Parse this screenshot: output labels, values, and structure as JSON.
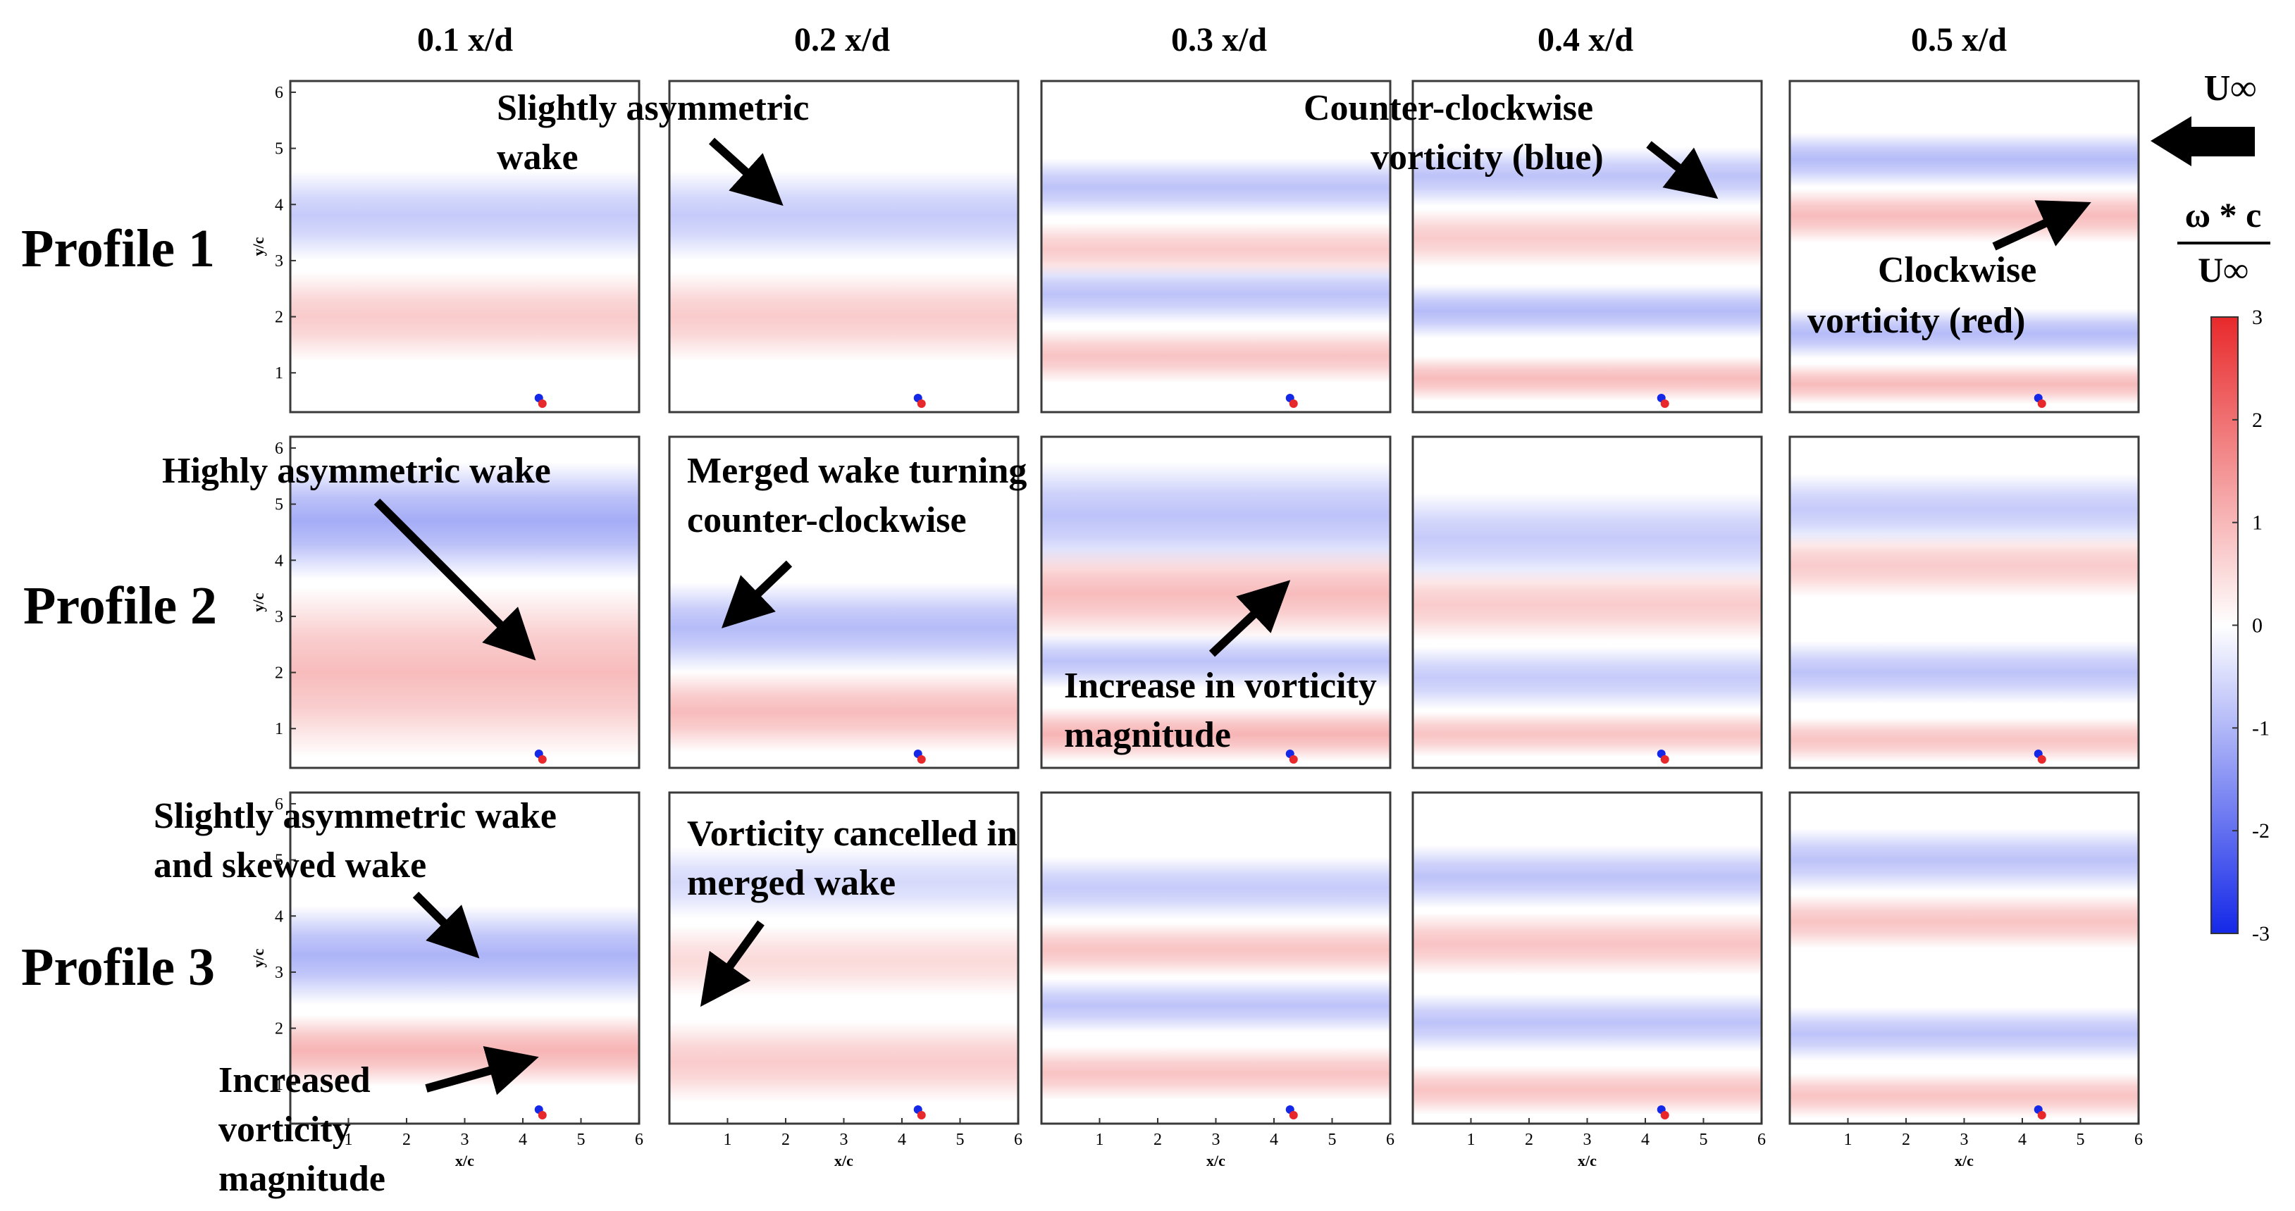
{
  "chart_data": {
    "type": "heatmap",
    "title": "",
    "columns": [
      "0.1 x/d",
      "0.2 x/d",
      "0.3 x/d",
      "0.4 x/d",
      "0.5 x/d"
    ],
    "rows": [
      "Profile 1",
      "Profile 2",
      "Profile 3"
    ],
    "xlabel": "x/c",
    "ylabel": "y/c",
    "xlim": [
      0,
      6
    ],
    "ylim": [
      0.3,
      6.2
    ],
    "xticks": [
      "1",
      "2",
      "3",
      "4",
      "5",
      "6"
    ],
    "yticks": [
      "1",
      "2",
      "3",
      "4",
      "5",
      "6"
    ],
    "colorbar": {
      "label_numerator": "ω * c",
      "label_denominator": "U∞",
      "range": [
        -3,
        3
      ],
      "ticks": [
        "3",
        "2",
        "1",
        "0",
        "-1",
        "-2",
        "-3"
      ],
      "colors": {
        "positive": "#e8292b",
        "zero": "#ffffff",
        "negative": "#1428e8"
      }
    },
    "freestream_label": "U∞",
    "freestream_direction": "right-to-left",
    "bands": [
      [
        [
          {
            "y": 3.8,
            "v": -0.7,
            "w": 1.0
          },
          {
            "y": 2.0,
            "v": 0.7,
            "w": 1.0
          }
        ],
        [
          {
            "y": 3.8,
            "v": -0.7,
            "w": 1.0
          },
          {
            "y": 2.0,
            "v": 0.7,
            "w": 1.0
          }
        ],
        [
          {
            "y": 4.3,
            "v": -0.8,
            "w": 0.65
          },
          {
            "y": 3.2,
            "v": 0.7,
            "w": 0.6
          },
          {
            "y": 2.4,
            "v": -0.8,
            "w": 0.65
          },
          {
            "y": 1.3,
            "v": 0.8,
            "w": 0.6
          }
        ],
        [
          {
            "y": 4.5,
            "v": -0.8,
            "w": 0.65
          },
          {
            "y": 3.4,
            "v": 0.7,
            "w": 0.65
          },
          {
            "y": 2.1,
            "v": -0.9,
            "w": 0.6
          },
          {
            "y": 0.9,
            "v": 0.9,
            "w": 0.5
          }
        ],
        [
          {
            "y": 4.8,
            "v": -0.9,
            "w": 0.6
          },
          {
            "y": 3.8,
            "v": 0.9,
            "w": 0.6
          },
          {
            "y": 1.7,
            "v": -0.9,
            "w": 0.55
          },
          {
            "y": 0.8,
            "v": 0.9,
            "w": 0.45
          }
        ]
      ],
      [
        [
          {
            "y": 4.7,
            "v": -1.1,
            "w": 1.3
          },
          {
            "y": 2.0,
            "v": 0.9,
            "w": 1.9
          }
        ],
        [
          {
            "y": 2.8,
            "v": -0.9,
            "w": 1.0
          },
          {
            "y": 1.3,
            "v": 0.9,
            "w": 0.9
          }
        ],
        [
          {
            "y": 4.8,
            "v": -0.8,
            "w": 1.2
          },
          {
            "y": 3.4,
            "v": 0.9,
            "w": 1.0
          },
          {
            "y": 2.2,
            "v": -0.8,
            "w": 0.6
          },
          {
            "y": 0.9,
            "v": 1.0,
            "w": 0.6
          }
        ],
        [
          {
            "y": 4.4,
            "v": -0.7,
            "w": 1.0
          },
          {
            "y": 3.2,
            "v": 0.7,
            "w": 0.8
          },
          {
            "y": 1.9,
            "v": -0.7,
            "w": 0.7
          },
          {
            "y": 0.9,
            "v": 0.8,
            "w": 0.5
          }
        ],
        [
          {
            "y": 4.9,
            "v": -0.7,
            "w": 0.8
          },
          {
            "y": 3.9,
            "v": 0.7,
            "w": 0.7
          },
          {
            "y": 2.0,
            "v": -0.8,
            "w": 0.7
          },
          {
            "y": 0.8,
            "v": 0.8,
            "w": 0.5
          }
        ]
      ],
      [
        [
          {
            "y": 3.3,
            "v": -1.0,
            "w": 1.1
          },
          {
            "y": 1.6,
            "v": 1.0,
            "w": 0.8
          }
        ],
        [
          {
            "y": 4.6,
            "v": -0.5,
            "w": 0.8
          },
          {
            "y": 3.2,
            "v": 0.5,
            "w": 0.8
          },
          {
            "y": 1.4,
            "v": 0.7,
            "w": 0.9
          }
        ],
        [
          {
            "y": 4.5,
            "v": -0.7,
            "w": 0.7
          },
          {
            "y": 3.4,
            "v": 0.8,
            "w": 0.6
          },
          {
            "y": 2.4,
            "v": -0.8,
            "w": 0.6
          },
          {
            "y": 1.2,
            "v": 0.8,
            "w": 0.6
          }
        ],
        [
          {
            "y": 4.7,
            "v": -0.8,
            "w": 0.7
          },
          {
            "y": 3.5,
            "v": 0.8,
            "w": 0.7
          },
          {
            "y": 2.1,
            "v": -0.8,
            "w": 0.65
          },
          {
            "y": 0.9,
            "v": 0.8,
            "w": 0.55
          }
        ],
        [
          {
            "y": 5.0,
            "v": -0.8,
            "w": 0.7
          },
          {
            "y": 3.9,
            "v": 0.8,
            "w": 0.6
          },
          {
            "y": 1.9,
            "v": -0.8,
            "w": 0.6
          },
          {
            "y": 0.8,
            "v": 0.8,
            "w": 0.5
          }
        ]
      ]
    ],
    "annotations": [
      {
        "lines": [
          "Slightly asymmetric",
          "wake"
        ],
        "col": 0,
        "row": 0
      },
      {
        "lines": [
          "Counter-clockwise",
          "vorticity (blue)"
        ],
        "col": 3,
        "row": 0
      },
      {
        "lines": [
          "Clockwise",
          "vorticity (red)"
        ],
        "col": 4,
        "row": 0
      },
      {
        "lines": [
          "Highly asymmetric wake"
        ],
        "col": 0,
        "row": 1
      },
      {
        "lines": [
          "Merged wake turning",
          "counter-clockwise"
        ],
        "col": 1,
        "row": 1
      },
      {
        "lines": [
          "Increase in vorticity",
          "magnitude"
        ],
        "col": 2,
        "row": 1
      },
      {
        "lines": [
          "Slightly asymmetric wake",
          "and skewed wake"
        ],
        "col": 0,
        "row": 2
      },
      {
        "lines": [
          "Vorticity cancelled in",
          "merged wake"
        ],
        "col": 1,
        "row": 2
      },
      {
        "lines": [
          "Increased",
          "vorticity",
          "magnitude"
        ],
        "col": 0,
        "row": 2
      }
    ]
  }
}
